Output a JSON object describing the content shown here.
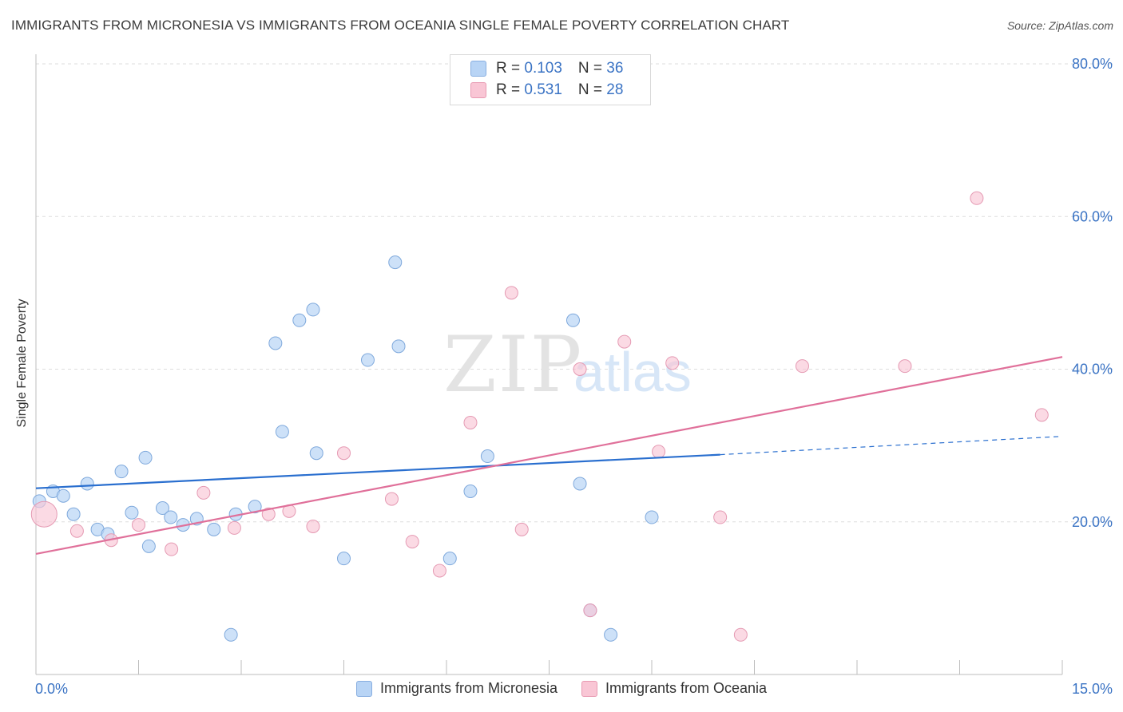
{
  "header": {
    "title": "IMMIGRANTS FROM MICRONESIA VS IMMIGRANTS FROM OCEANIA SINGLE FEMALE POVERTY CORRELATION CHART",
    "source": "Source: ZipAtlas.com"
  },
  "watermark": {
    "zip": "ZIP",
    "atlas": "atlas"
  },
  "legend_top": {
    "rows": [
      {
        "r_label": "R = ",
        "r_value": "0.103",
        "n_label": "N = ",
        "n_value": "36"
      },
      {
        "r_label": "R = ",
        "r_value": "0.531",
        "n_label": "N = ",
        "n_value": "28"
      }
    ]
  },
  "legend_bottom": {
    "series1": "Immigrants from Micronesia",
    "series2": "Immigrants from Oceania"
  },
  "colors": {
    "blue_fill": "#b8d4f5",
    "blue_stroke": "#7fa9dc",
    "blue_line": "#2a6fcf",
    "pink_fill": "#f9c6d5",
    "pink_stroke": "#e59ab3",
    "pink_line": "#e0709a",
    "axis_text": "#3a73c4",
    "grid": "#dddddd"
  },
  "chart_data": {
    "type": "scatter",
    "title": "IMMIGRANTS FROM MICRONESIA VS IMMIGRANTS FROM OCEANIA SINGLE FEMALE POVERTY CORRELATION CHART",
    "xlabel": "",
    "ylabel": "Single Female Poverty",
    "xlim": [
      0,
      15
    ],
    "ylim": [
      0,
      80
    ],
    "x_tick_labels": [
      "0.0%",
      "15.0%"
    ],
    "y_ticks": [
      20,
      40,
      60,
      80
    ],
    "y_tick_labels": [
      "20.0%",
      "40.0%",
      "60.0%",
      "80.0%"
    ],
    "grid": "horizontal dashed",
    "legend": "top-center and bottom",
    "series": [
      {
        "name": "Immigrants from Micronesia",
        "color": "blue",
        "R": 0.103,
        "N": 36,
        "trend": {
          "x0": 0,
          "y0": 24.4,
          "x1": 10.0,
          "y1": 28.8,
          "dashed_to_x": 15,
          "dashed_to_y": 31.2
        },
        "points": [
          [
            0.05,
            22.7
          ],
          [
            0.25,
            24.0
          ],
          [
            0.4,
            23.4
          ],
          [
            0.55,
            21.0
          ],
          [
            0.75,
            25.0
          ],
          [
            0.9,
            19.0
          ],
          [
            1.05,
            18.4
          ],
          [
            1.25,
            26.6
          ],
          [
            1.4,
            21.2
          ],
          [
            1.6,
            28.4
          ],
          [
            1.65,
            16.8
          ],
          [
            1.85,
            21.8
          ],
          [
            1.97,
            20.6
          ],
          [
            2.15,
            19.6
          ],
          [
            2.35,
            20.4
          ],
          [
            2.6,
            19.0
          ],
          [
            2.85,
            5.2
          ],
          [
            2.92,
            21.0
          ],
          [
            3.2,
            22.0
          ],
          [
            3.5,
            43.4
          ],
          [
            3.6,
            31.8
          ],
          [
            3.85,
            46.4
          ],
          [
            4.05,
            47.8
          ],
          [
            4.1,
            29.0
          ],
          [
            4.5,
            15.2
          ],
          [
            4.85,
            41.2
          ],
          [
            5.25,
            54.0
          ],
          [
            5.3,
            43.0
          ],
          [
            6.05,
            15.2
          ],
          [
            6.35,
            24.0
          ],
          [
            6.6,
            28.6
          ],
          [
            7.85,
            46.4
          ],
          [
            7.95,
            25.0
          ],
          [
            8.1,
            8.4
          ],
          [
            8.4,
            5.2
          ],
          [
            9.0,
            20.6
          ]
        ]
      },
      {
        "name": "Immigrants from Oceania",
        "color": "pink",
        "R": 0.531,
        "N": 28,
        "trend": {
          "x0": 0,
          "y0": 15.8,
          "x1": 15,
          "y1": 41.6
        },
        "points": [
          [
            0.12,
            21.0
          ],
          [
            0.6,
            18.8
          ],
          [
            1.1,
            17.6
          ],
          [
            1.5,
            19.6
          ],
          [
            1.98,
            16.4
          ],
          [
            2.45,
            23.8
          ],
          [
            2.9,
            19.2
          ],
          [
            3.4,
            21.0
          ],
          [
            3.7,
            21.4
          ],
          [
            4.05,
            19.4
          ],
          [
            4.5,
            29.0
          ],
          [
            5.2,
            23.0
          ],
          [
            5.5,
            17.4
          ],
          [
            5.9,
            13.6
          ],
          [
            6.35,
            33.0
          ],
          [
            6.95,
            50.0
          ],
          [
            7.1,
            19.0
          ],
          [
            7.95,
            40.0
          ],
          [
            8.1,
            8.4
          ],
          [
            8.6,
            43.6
          ],
          [
            9.1,
            29.2
          ],
          [
            9.3,
            40.8
          ],
          [
            10.0,
            20.6
          ],
          [
            10.3,
            5.2
          ],
          [
            11.2,
            40.4
          ],
          [
            12.7,
            40.4
          ],
          [
            13.75,
            62.4
          ],
          [
            14.7,
            34.0
          ]
        ]
      }
    ]
  }
}
